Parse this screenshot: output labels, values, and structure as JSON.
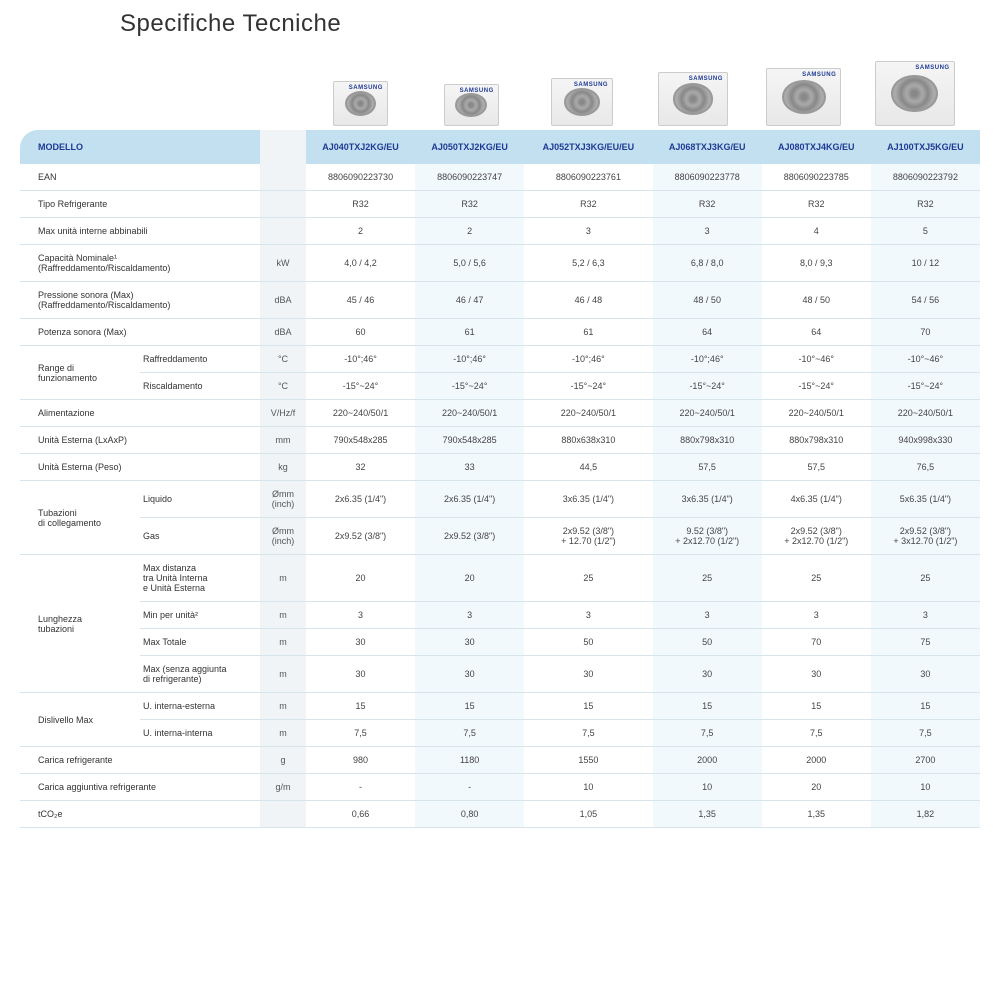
{
  "title": "Specifiche Tecniche",
  "header_label": "MODELLO",
  "models": [
    "AJ040TXJ2KG/EU",
    "AJ050TXJ2KG/EU",
    "AJ052TXJ3KG/EU/EU",
    "AJ068TXJ3KG/EU",
    "AJ080TXJ4KG/EU",
    "AJ100TXJ5KG/EU"
  ],
  "unit_images_sizes": [
    [
      55,
      45
    ],
    [
      55,
      42
    ],
    [
      62,
      48
    ],
    [
      70,
      54
    ],
    [
      75,
      58
    ],
    [
      80,
      65
    ]
  ],
  "rows": [
    {
      "l1": "EAN",
      "unit": "",
      "v": [
        "8806090223730",
        "8806090223747",
        "8806090223761",
        "8806090223778",
        "8806090223785",
        "8806090223792"
      ]
    },
    {
      "l1": "Tipo Refrigerante",
      "unit": "",
      "v": [
        "R32",
        "R32",
        "R32",
        "R32",
        "R32",
        "R32"
      ]
    },
    {
      "l1": "Max unità interne abbinabili",
      "unit": "",
      "v": [
        "2",
        "2",
        "3",
        "3",
        "4",
        "5"
      ]
    },
    {
      "l1": "Capacità Nominale¹\n(Raffreddamento/Riscaldamento)",
      "unit": "kW",
      "v": [
        "4,0 / 4,2",
        "5,0 / 5,6",
        "5,2 / 6,3",
        "6,8 / 8,0",
        "8,0 / 9,3",
        "10 / 12"
      ]
    },
    {
      "l1": "Pressione sonora (Max)\n(Raffreddamento/Riscaldamento)",
      "unit": "dBA",
      "v": [
        "45 / 46",
        "46 / 47",
        "46 / 48",
        "48 / 50",
        "48 / 50",
        "54 / 56"
      ]
    },
    {
      "l1": "Potenza sonora (Max)",
      "unit": "dBA",
      "v": [
        "60",
        "61",
        "61",
        "64",
        "64",
        "70"
      ]
    },
    {
      "l1": "Range di\nfunzionamento",
      "l2": "Raffreddamento",
      "unit": "°C",
      "v": [
        "-10°;46°",
        "-10°;46°",
        "-10°;46°",
        "-10°;46°",
        "-10°~46°",
        "-10°~46°"
      ],
      "group": "range",
      "gspan": 2
    },
    {
      "l2": "Riscaldamento",
      "unit": "°C",
      "v": [
        "-15°~24°",
        "-15°~24°",
        "-15°~24°",
        "-15°~24°",
        "-15°~24°",
        "-15°~24°"
      ]
    },
    {
      "l1": "Alimentazione",
      "unit": "V/Hz/f",
      "v": [
        "220~240/50/1",
        "220~240/50/1",
        "220~240/50/1",
        "220~240/50/1",
        "220~240/50/1",
        "220~240/50/1"
      ]
    },
    {
      "l1": "Unità Esterna (LxAxP)",
      "unit": "mm",
      "v": [
        "790x548x285",
        "790x548x285",
        "880x638x310",
        "880x798x310",
        "880x798x310",
        "940x998x330"
      ]
    },
    {
      "l1": "Unità Esterna (Peso)",
      "unit": "kg",
      "v": [
        "32",
        "33",
        "44,5",
        "57,5",
        "57,5",
        "76,5"
      ]
    },
    {
      "l1": "Tubazioni\ndi collegamento",
      "l2": "Liquido",
      "unit": "Ømm\n(inch)",
      "v": [
        "2x6.35 (1/4\")",
        "2x6.35 (1/4\")",
        "3x6.35 (1/4\")",
        "3x6.35 (1/4\")",
        "4x6.35 (1/4\")",
        "5x6.35 (1/4\")"
      ],
      "group": "tub",
      "gspan": 2
    },
    {
      "l2": "Gas",
      "unit": "Ømm\n(inch)",
      "v": [
        "2x9.52 (3/8\")",
        "2x9.52 (3/8\")",
        "2x9.52 (3/8\")\n+ 12.70 (1/2\")",
        "9.52 (3/8\")\n+ 2x12.70 (1/2\")",
        "2x9.52 (3/8\")\n+ 2x12.70 (1/2\")",
        "2x9.52 (3/8\")\n+ 3x12.70 (1/2\")"
      ]
    },
    {
      "l1": "Lunghezza\ntubazioni",
      "l2": "Max distanza\ntra Unità Interna\ne Unità Esterna",
      "unit": "m",
      "v": [
        "20",
        "20",
        "25",
        "25",
        "25",
        "25"
      ],
      "group": "lun",
      "gspan": 4
    },
    {
      "l2": "Min per unità²",
      "unit": "m",
      "v": [
        "3",
        "3",
        "3",
        "3",
        "3",
        "3"
      ]
    },
    {
      "l2": "Max Totale",
      "unit": "m",
      "v": [
        "30",
        "30",
        "50",
        "50",
        "70",
        "75"
      ]
    },
    {
      "l2": "Max (senza aggiunta\ndi refrigerante)",
      "unit": "m",
      "v": [
        "30",
        "30",
        "30",
        "30",
        "30",
        "30"
      ]
    },
    {
      "l1": "Dislivello Max",
      "l2": "U. interna-esterna",
      "unit": "m",
      "v": [
        "15",
        "15",
        "15",
        "15",
        "15",
        "15"
      ],
      "group": "dis",
      "gspan": 2
    },
    {
      "l2": "U. interna-interna",
      "unit": "m",
      "v": [
        "7,5",
        "7,5",
        "7,5",
        "7,5",
        "7,5",
        "7,5"
      ]
    },
    {
      "l1": "Carica refrigerante",
      "unit": "g",
      "v": [
        "980",
        "1180",
        "1550",
        "2000",
        "2000",
        "2700"
      ]
    },
    {
      "l1": "Carica aggiuntiva refrigerante",
      "unit": "g/m",
      "v": [
        "-",
        "-",
        "10",
        "10",
        "20",
        "10"
      ]
    },
    {
      "l1": "tCO₂e",
      "unit": "",
      "v": [
        "0,66",
        "0,80",
        "1,05",
        "1,35",
        "1,35",
        "1,82"
      ]
    }
  ],
  "colors": {
    "header_bg": "#c2e0f0",
    "header_text": "#1f3a93",
    "stripe_bg": "#f2f9fd",
    "unit_bg": "#f0f4f7",
    "border": "#d8e4ec"
  }
}
